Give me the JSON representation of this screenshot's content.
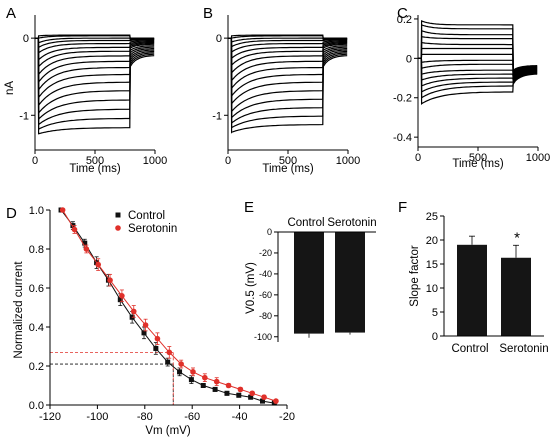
{
  "colors": {
    "control": "#111111",
    "serotonin": "#e0302a",
    "bar": "#151515",
    "trace": "#000000"
  },
  "chart_data": [
    {
      "panel": "A",
      "type": "line",
      "xlabel": "Time (ms)",
      "ylabel": "nA",
      "xlim": [
        0,
        1000
      ],
      "ylim": [
        -1.45,
        0.3
      ],
      "xticks": [
        "0",
        "500",
        "1000"
      ],
      "yticks": [
        "0",
        "-1"
      ],
      "pulse_start_ms": 30,
      "pulse_end_ms": 790,
      "sweep_peaks_nA": [
        0.03,
        0.0,
        -0.06,
        -0.12,
        -0.19,
        -0.28,
        -0.37,
        -0.47,
        -0.57,
        -0.67,
        -0.77,
        -0.87,
        -0.97,
        -1.05,
        -1.12,
        -1.18,
        -1.24
      ],
      "sweep_steady_nA": [
        0.04,
        0.03,
        0.0,
        -0.03,
        -0.07,
        -0.12,
        -0.17,
        -0.23,
        -0.3,
        -0.38,
        -0.47,
        -0.57,
        -0.68,
        -0.8,
        -0.92,
        -1.04,
        -1.16
      ],
      "tail_nA": [
        0.0,
        -0.01,
        -0.02,
        -0.03,
        -0.05,
        -0.07,
        -0.09,
        -0.11,
        -0.13,
        -0.16,
        -0.19,
        -0.22,
        -0.25,
        -0.28,
        -0.31,
        -0.34,
        -0.37
      ]
    },
    {
      "panel": "B",
      "type": "line",
      "xlabel": "Time (ms)",
      "ylabel": "",
      "xlim": [
        0,
        1000
      ],
      "ylim": [
        -1.45,
        0.3
      ],
      "xticks": [
        "0",
        "500",
        "1000"
      ],
      "yticks": [
        "0",
        "-1"
      ],
      "pulse_start_ms": 30,
      "pulse_end_ms": 790,
      "sweep_peaks_nA": [
        0.03,
        0.0,
        -0.05,
        -0.11,
        -0.18,
        -0.26,
        -0.35,
        -0.45,
        -0.55,
        -0.65,
        -0.75,
        -0.85,
        -0.95,
        -1.03,
        -1.1,
        -1.16,
        -1.22
      ],
      "sweep_steady_nA": [
        0.04,
        0.03,
        0.0,
        -0.03,
        -0.07,
        -0.12,
        -0.17,
        -0.23,
        -0.3,
        -0.38,
        -0.47,
        -0.57,
        -0.68,
        -0.79,
        -0.9,
        -1.01,
        -1.12
      ],
      "tail_nA": [
        0.0,
        -0.01,
        -0.02,
        -0.03,
        -0.05,
        -0.07,
        -0.09,
        -0.11,
        -0.13,
        -0.16,
        -0.19,
        -0.22,
        -0.25,
        -0.28,
        -0.31,
        -0.34,
        -0.37
      ]
    },
    {
      "panel": "C",
      "type": "line",
      "xlabel": "Time (ms)",
      "ylabel": "",
      "xlim": [
        0,
        1000
      ],
      "ylim": [
        -0.45,
        0.22
      ],
      "xticks": [
        "0",
        "500",
        "1000"
      ],
      "yticks": [
        "0.2",
        "0",
        "-0.2",
        "-0.4"
      ],
      "pulse_start_ms": 30,
      "pulse_end_ms": 790,
      "sweep_peaks_nA": [
        0.19,
        0.17,
        0.14,
        0.11,
        0.08,
        0.05,
        0.02,
        -0.02,
        -0.05,
        -0.08,
        -0.11,
        -0.14,
        -0.17,
        -0.2,
        -0.23
      ],
      "sweep_steady_nA": [
        0.17,
        0.15,
        0.12,
        0.1,
        0.07,
        0.05,
        0.02,
        -0.01,
        -0.03,
        -0.06,
        -0.08,
        -0.1,
        -0.12,
        -0.14,
        -0.17
      ],
      "tail_nA": [
        -0.06,
        -0.065,
        -0.07,
        -0.075,
        -0.08,
        -0.085,
        -0.09,
        -0.095,
        -0.1,
        -0.105,
        -0.11,
        -0.115,
        -0.12,
        -0.125,
        -0.13
      ]
    },
    {
      "panel": "D",
      "type": "scatter",
      "xlabel": "Vm (mV)",
      "ylabel": "Normalized current",
      "xlim": [
        -120,
        -20
      ],
      "ylim": [
        0.0,
        1.0
      ],
      "xticks": [
        "-120",
        "-100",
        "-80",
        "-60",
        "-40",
        "-20"
      ],
      "yticks": [
        "0.0",
        "0.2",
        "0.4",
        "0.6",
        "0.8",
        "1.0"
      ],
      "x": [
        -115,
        -110,
        -105,
        -100,
        -95,
        -90,
        -85,
        -80,
        -75,
        -70,
        -65,
        -60,
        -55,
        -50,
        -45,
        -40,
        -35,
        -30,
        -25
      ],
      "series": [
        {
          "name": "Control",
          "y": [
            1.0,
            0.92,
            0.83,
            0.73,
            0.64,
            0.54,
            0.45,
            0.37,
            0.29,
            0.22,
            0.17,
            0.13,
            0.1,
            0.08,
            0.06,
            0.05,
            0.04,
            0.02,
            0.01
          ],
          "err": [
            0.0,
            0.02,
            0.02,
            0.03,
            0.03,
            0.03,
            0.03,
            0.03,
            0.03,
            0.02,
            0.02,
            0.02,
            0.01,
            0.01,
            0.01,
            0.01,
            0.01,
            0.01,
            0.0
          ]
        },
        {
          "name": "Serotonin",
          "y": [
            1.0,
            0.9,
            0.8,
            0.72,
            0.64,
            0.56,
            0.48,
            0.41,
            0.34,
            0.27,
            0.21,
            0.17,
            0.14,
            0.12,
            0.1,
            0.08,
            0.06,
            0.04,
            0.02
          ],
          "err": [
            0.0,
            0.02,
            0.02,
            0.03,
            0.03,
            0.03,
            0.03,
            0.03,
            0.03,
            0.03,
            0.02,
            0.02,
            0.02,
            0.02,
            0.01,
            0.01,
            0.01,
            0.01,
            0.0
          ]
        }
      ],
      "guides": [
        {
          "series": "Control",
          "x": -68,
          "y": 0.21
        },
        {
          "series": "Serotonin",
          "x": -68,
          "y": 0.27
        }
      ],
      "legend": "top-right"
    },
    {
      "panel": "E",
      "type": "bar",
      "ylabel": "V0.5 (mV)",
      "categories": [
        "Control",
        "Serotonin"
      ],
      "values": [
        -97,
        -96
      ],
      "err": [
        4,
        2
      ],
      "ylim": [
        -105,
        0
      ],
      "yticks": [
        "0",
        "-20",
        "-40",
        "-60",
        "-80",
        "-100"
      ]
    },
    {
      "panel": "F",
      "type": "bar",
      "ylabel": "Slope factor",
      "categories": [
        "Control",
        "Serotonin"
      ],
      "values": [
        19,
        16.3
      ],
      "err": [
        1.8,
        2.6
      ],
      "ylim": [
        0,
        25
      ],
      "yticks": [
        "0",
        "5",
        "10",
        "15",
        "20",
        "25"
      ],
      "annotation": "*"
    }
  ]
}
